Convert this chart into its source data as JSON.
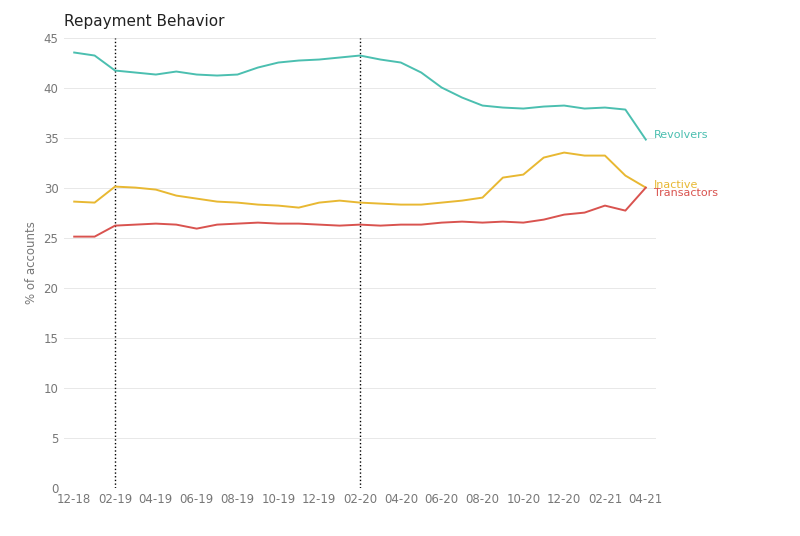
{
  "title": "Repayment Behavior",
  "ylabel": "% of accounts",
  "ylim": [
    0,
    45
  ],
  "yticks": [
    0,
    5,
    10,
    15,
    20,
    25,
    30,
    35,
    40,
    45
  ],
  "x_labels": [
    "12-18",
    "02-19",
    "04-19",
    "06-19",
    "08-19",
    "10-19",
    "12-19",
    "02-20",
    "04-20",
    "06-20",
    "08-20",
    "10-20",
    "12-20",
    "02-21",
    "04-21"
  ],
  "vline_feb19_idx": 2,
  "vline_feb20_idx": 14,
  "colors": {
    "revolvers": "#4bbfb0",
    "inactive": "#e8b832",
    "transactors": "#d9534f"
  },
  "revolvers": [
    43.5,
    43.2,
    41.7,
    41.5,
    41.3,
    41.6,
    41.3,
    41.2,
    41.3,
    42.0,
    42.5,
    42.7,
    42.8,
    43.0,
    43.2,
    42.8,
    42.5,
    41.5,
    40.0,
    39.0,
    38.2,
    38.0,
    37.9,
    38.1,
    38.2,
    37.9,
    38.0,
    37.8,
    34.8
  ],
  "inactive": [
    28.6,
    28.5,
    30.1,
    30.0,
    29.8,
    29.2,
    28.9,
    28.6,
    28.5,
    28.3,
    28.2,
    28.0,
    28.5,
    28.7,
    28.5,
    28.4,
    28.3,
    28.3,
    28.5,
    28.7,
    29.0,
    31.0,
    31.3,
    33.0,
    33.5,
    33.2,
    33.2,
    31.2,
    30.0
  ],
  "transactors": [
    25.1,
    25.1,
    26.2,
    26.3,
    26.4,
    26.3,
    25.9,
    26.3,
    26.4,
    26.5,
    26.4,
    26.4,
    26.3,
    26.2,
    26.3,
    26.2,
    26.3,
    26.3,
    26.5,
    26.6,
    26.5,
    26.6,
    26.5,
    26.8,
    27.3,
    27.5,
    28.2,
    27.7,
    30.0
  ],
  "background_color": "#ffffff",
  "grid_color": "#e8e8e8",
  "text_color": "#777777",
  "line_width": 1.4,
  "label_fontsize": 8.5,
  "title_fontsize": 11,
  "annot_fontsize": 8
}
